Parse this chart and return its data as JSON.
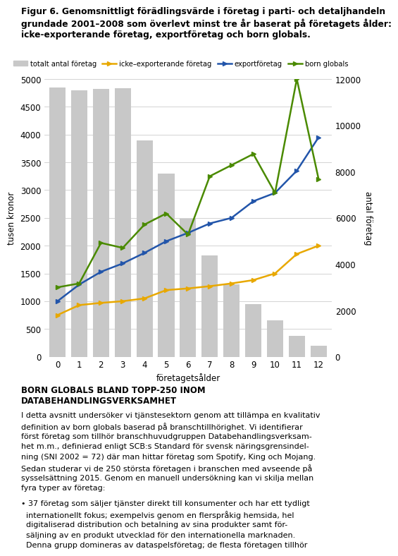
{
  "title_line1": "Figur 6. Genomsnittligt förädlingsvärde i företag i parti- och detaljhandeln",
  "title_line2": "grundade 2001–2008 som överlevt minst tre år baserat på företagets ålder:",
  "title_line3": "icke-exporterande företag, exportföretag och born globals.",
  "x_labels": [
    0,
    1,
    2,
    3,
    4,
    5,
    6,
    7,
    8,
    9,
    10,
    11,
    12
  ],
  "bar_values": [
    4850,
    4800,
    4820,
    4840,
    3900,
    3300,
    2480,
    1820,
    1300,
    950,
    660,
    380,
    200
  ],
  "bar_color": "#c8c8c8",
  "icke_export": [
    750,
    930,
    970,
    1000,
    1050,
    1200,
    1230,
    1270,
    1320,
    1380,
    1500,
    1850,
    2000
  ],
  "export": [
    1000,
    1300,
    1530,
    1680,
    1870,
    2080,
    2230,
    2400,
    2500,
    2800,
    2950,
    3350,
    3950
  ],
  "born_globals": [
    1250,
    1320,
    2050,
    1960,
    2380,
    2580,
    2200,
    3250,
    3450,
    3650,
    2950,
    5000,
    3200
  ],
  "icke_export_color": "#e8a800",
  "export_color": "#2255aa",
  "born_globals_color": "#4a8a00",
  "xlabel": "företagetsålder",
  "ylabel_left": "tusen kronor",
  "ylabel_right": "antal företag",
  "ylim_left": [
    0,
    5000
  ],
  "ylim_right": [
    0,
    12000
  ],
  "yticks_left": [
    0,
    500,
    1000,
    1500,
    2000,
    2500,
    3000,
    3500,
    4000,
    4500,
    5000
  ],
  "yticks_right": [
    0,
    2000,
    4000,
    6000,
    8000,
    10000,
    12000
  ],
  "legend_labels": [
    "totalt antal företag",
    "icke–exporterande företag",
    "exportföretag",
    "born globals"
  ],
  "background_color": "#ffffff",
  "body_title": "BORN GLOBALS BLAND TOPP-250 INOM\nDATABEHANDLINGSVERKSAMHET",
  "body_text_line1": "I detta avsnitt undersöker vi tjänstesektorn genom att tillämpa en kvalitativ",
  "body_text_line2": "definition av born globals baserad på branschtillhörighet. Vi identifierar",
  "body_text_line3": "först företag som tillhör branschhuvudgruppen Databehandlingsverksam-",
  "body_text_line4": "het m.m., definierad enligt SCB:s Standard för svensk näringsgrensindel-",
  "body_text_line5": "ning (SNI 2002 = 72) där man hittar företag som Spotify, King och Mojang.",
  "body_text_line6": "Sedan studerar vi de 250 största företagen i branschen med avseende på",
  "body_text_line7": "sysselsättning 2015. Genom en manuell undersökning kan vi skilja mellan",
  "body_text_line8": "fyra typer av företag:",
  "bullet_text": "• 37 företag som säljer tjänster direkt till konsumenter och har ett tydligt",
  "bullet_line2": "  internationellt fokus; exempelvis genom en flerspråkig hemsida, hel",
  "bullet_line3": "  digitaliserad distribution och betalning av sina produkter samt för-",
  "bullet_line4": "  säljning av en produkt utvecklad för den internationella marknaden.",
  "bullet_line5": "  Denna grupp domineras av dataspelsföretag; de flesta företagen tillhör"
}
